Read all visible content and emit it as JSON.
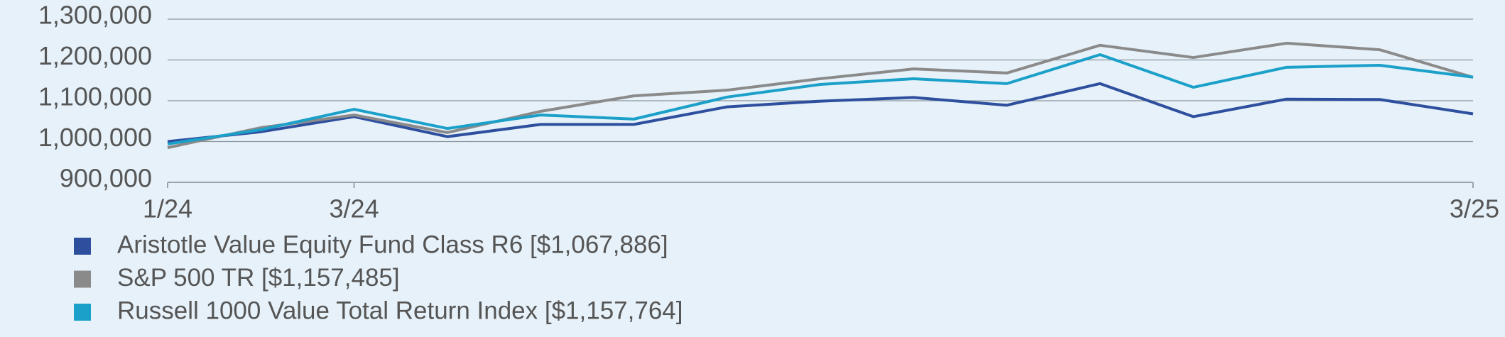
{
  "chart_data": {
    "type": "line",
    "categories": [
      "1/24",
      null,
      "3/24",
      null,
      null,
      null,
      null,
      null,
      null,
      null,
      null,
      null,
      null,
      null,
      "3/25"
    ],
    "series": [
      {
        "name": "Aristotle Value Equity Fund Class R6 [$1,067,886]",
        "color": "#2e4f9e",
        "values": [
          1000000,
          1024000,
          1061000,
          1012000,
          1042000,
          1042000,
          1085000,
          1099000,
          1108000,
          1089000,
          1142000,
          1061000,
          1104000,
          1103000,
          1067886
        ]
      },
      {
        "name": "S&P 500 TR [$1,157,485]",
        "color": "#8a8a8a",
        "values": [
          985000,
          1034000,
          1065000,
          1022000,
          1074000,
          1112000,
          1126000,
          1154000,
          1178000,
          1168000,
          1236000,
          1206000,
          1241000,
          1225000,
          1157485
        ]
      },
      {
        "name": "Russell 1000 Value Total Return Index [$1,157,764]",
        "color": "#1ba0c9",
        "values": [
          994000,
          1029000,
          1079000,
          1032000,
          1065000,
          1055000,
          1109000,
          1140000,
          1154000,
          1142000,
          1213000,
          1133000,
          1182000,
          1187000,
          1157764
        ]
      }
    ],
    "ylim": [
      900000,
      1300000
    ],
    "yticks": [
      {
        "value": 900000,
        "label": "900,000"
      },
      {
        "value": 1000000,
        "label": "1,000,000"
      },
      {
        "value": 1100000,
        "label": "1,100,000"
      },
      {
        "value": 1200000,
        "label": "1,200,000"
      },
      {
        "value": 1300000,
        "label": "1,300,000"
      }
    ],
    "grid": true
  }
}
